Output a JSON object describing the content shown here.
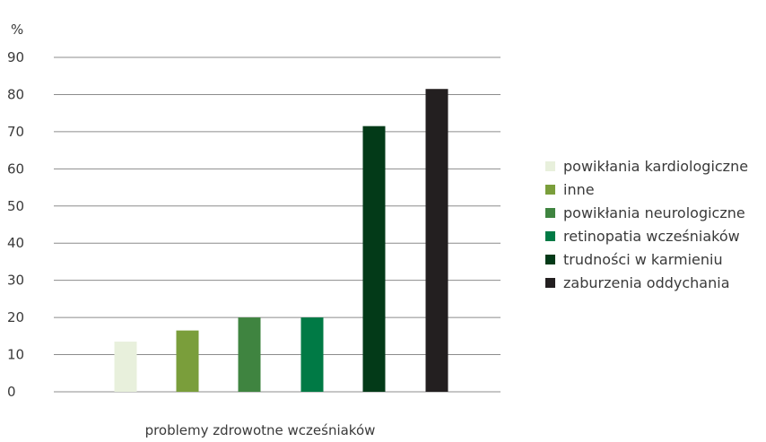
{
  "chart_data": {
    "type": "bar",
    "ylabel": "%",
    "xlabel": "problemy zdrowotne wcześniaków",
    "ylim": [
      0,
      90
    ],
    "yticks": [
      0,
      10,
      20,
      30,
      40,
      50,
      60,
      70,
      80,
      90
    ],
    "grid": true,
    "legend_position": "right",
    "series": [
      {
        "name": "powikłania kardiologiczne",
        "value": 13.5,
        "color": "#e8f0dc"
      },
      {
        "name": "inne",
        "value": 16.5,
        "color": "#7a9e3b"
      },
      {
        "name": "powikłania neurologiczne",
        "value": 20,
        "color": "#3f8440"
      },
      {
        "name": "retinopatia wcześniaków",
        "value": 20,
        "color": "#007a45"
      },
      {
        "name": "trudności w karmieniu",
        "value": 71.5,
        "color": "#033a18"
      },
      {
        "name": "zaburzenia oddychania",
        "value": 81.5,
        "color": "#231f20"
      }
    ]
  }
}
